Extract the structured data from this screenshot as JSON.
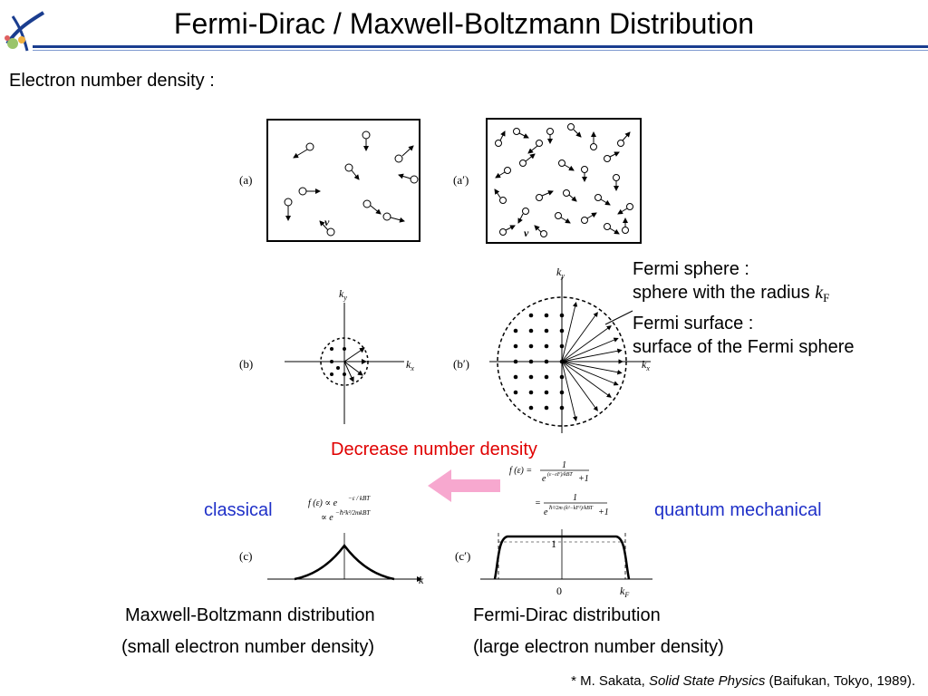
{
  "header": {
    "title": "Fermi-Dirac / Maxwell-Boltzmann Distribution"
  },
  "body": {
    "electron_density_label": "Electron number density :",
    "fermi_sphere_title": "Fermi sphere :",
    "fermi_sphere_desc": "sphere with the radius",
    "kF_symbol": "k",
    "kF_subscript": "F",
    "fermi_surface_title": "Fermi surface :",
    "fermi_surface_desc": "surface of the Fermi sphere",
    "decrease_label": "Decrease number density",
    "classical_label": "classical",
    "quantum_label": "quantum mechanical",
    "mb_name": "Maxwell-Boltzmann distribution",
    "mb_note": "(small electron number density)",
    "fd_name": "Fermi-Dirac distribution",
    "fd_note": "(large electron number density)"
  },
  "figure": {
    "panel_a": "(a)",
    "panel_a_prime": "(a′)",
    "panel_b": "(b)",
    "panel_b_prime": "(b′)",
    "panel_c": "(c)",
    "panel_c_prime": "(c′)",
    "v_label": "v",
    "kx_label": "k",
    "kx_sub": "x",
    "ky_label": "k",
    "ky_sub": "y",
    "k_axis_label": "k",
    "origin_label": "0",
    "one_label": "1",
    "kF_axis_label": "k",
    "kF_axis_sub": "F"
  },
  "reference": {
    "prefix": "* M. Sakata, ",
    "book": "Solid State Physics",
    "suffix": " (Baifukan, Tokyo, 1989)."
  },
  "colors": {
    "accent_blue": "#1a3d8f",
    "red_text": "#e00000",
    "blue_text": "#1f30c8",
    "arrow_pink": "#f7a8cf"
  }
}
